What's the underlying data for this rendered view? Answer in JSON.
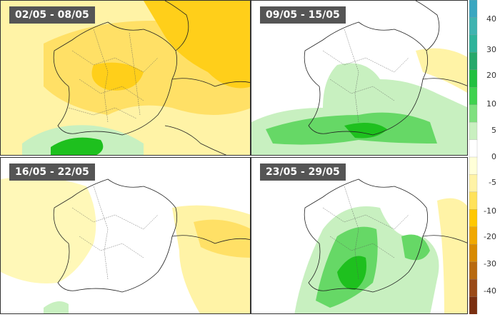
{
  "panels": [
    {
      "label": "02/05 - 08/05"
    },
    {
      "label": "09/05 - 15/05"
    },
    {
      "label": "16/05 - 22/05"
    },
    {
      "label": "23/05 - 29/05"
    }
  ],
  "legend": {
    "ticks": [
      "40",
      "30",
      "20",
      "10",
      "5",
      "0",
      "-5",
      "-10",
      "-20",
      "-30",
      "-40"
    ],
    "colors_top_to_bottom": [
      "#3aa6c0",
      "#3fb3b0",
      "#2fb39a",
      "#27a86a",
      "#22c040",
      "#3fd24f",
      "#7fe07f",
      "#c9f0c0",
      "#ffffff",
      "#ffffd8",
      "#fff3a6",
      "#ffe25a",
      "#ffc800",
      "#f0a800",
      "#d88a00",
      "#b86a10",
      "#9a4a18",
      "#7a2f10"
    ],
    "colors": {
      "dry_light": "#fff8b8",
      "dry_mid": "#ffe066",
      "dry_strong": "#ffcf1a",
      "wet_light": "#c8f0c0",
      "wet_mid": "#66d866",
      "wet_strong": "#1ec01e",
      "border": "#222222"
    }
  }
}
